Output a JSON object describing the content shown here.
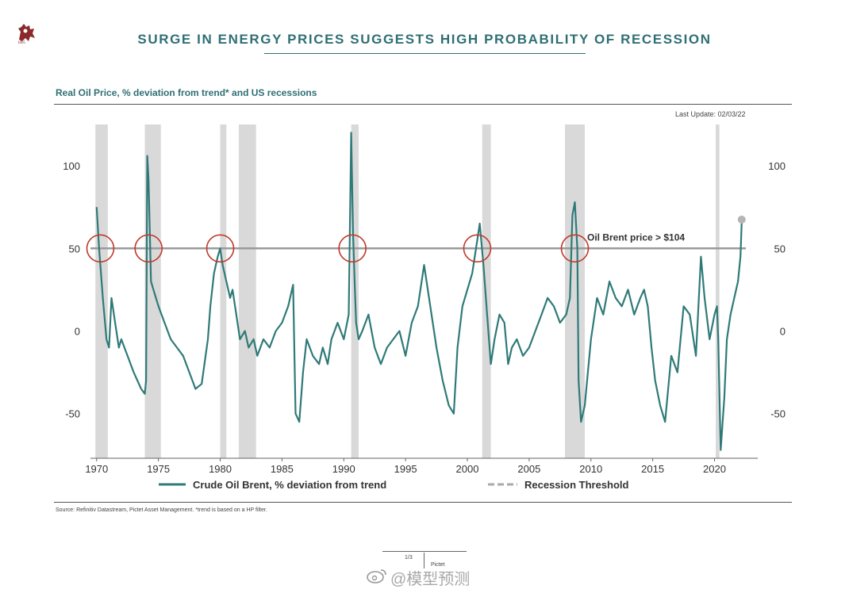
{
  "header": {
    "logo_year": "1805",
    "title": "SURGE IN ENERGY PRICES SUGGESTS HIGH PROBABILITY OF RECESSION"
  },
  "subtitle": "Real Oil Price, % deviation from trend* and US recessions",
  "last_update": "Last Update: 02/03/22",
  "source": "Source: Refinitiv Datastream, Pictet Asset Management. *trend is based on a HP filter.",
  "footer": {
    "page": "1/3",
    "brand": "Pictet"
  },
  "watermark": "@模型预测",
  "colors": {
    "series": "#2f7a78",
    "recession": "#d9d9d9",
    "threshold": "#9a9a9a",
    "circle": "#c0392b",
    "title": "#2f6f74"
  },
  "chart_data": {
    "type": "line",
    "xlim": [
      1969.5,
      2023.5
    ],
    "ylim": [
      -77,
      125
    ],
    "xticks": [
      "1970",
      "1975",
      "1980",
      "1985",
      "1990",
      "1995",
      "2000",
      "2005",
      "2010",
      "2015",
      "2020"
    ],
    "yticks_left": [
      "100",
      "50",
      "0",
      "-50"
    ],
    "yticks_right": [
      "100",
      "50",
      "0",
      "-50"
    ],
    "grid": false,
    "legend_position": "bottom",
    "recessions": [
      [
        1969.9,
        1970.9
      ],
      [
        1973.9,
        1975.2
      ],
      [
        1980.0,
        1980.5
      ],
      [
        1981.5,
        1982.9
      ],
      [
        1990.6,
        1991.2
      ],
      [
        2001.2,
        2001.9
      ],
      [
        2007.9,
        2009.5
      ],
      [
        2020.1,
        2020.4
      ]
    ],
    "threshold": {
      "value": 50,
      "label": "Oil Brent price > $104"
    },
    "circles_x": [
      1970.3,
      1974.2,
      1980.0,
      1990.7,
      2000.8,
      2008.7
    ],
    "latest_point": {
      "x": 2022.2,
      "y": 66
    },
    "series": [
      {
        "name": "Crude Oil Brent, % deviation from trend",
        "x": [
          1970.0,
          1970.2,
          1970.5,
          1970.8,
          1971.0,
          1971.2,
          1971.5,
          1971.8,
          1972.0,
          1972.5,
          1973.0,
          1973.3,
          1973.6,
          1973.9,
          1974.0,
          1974.1,
          1974.2,
          1974.4,
          1974.6,
          1975.0,
          1975.5,
          1976.0,
          1976.5,
          1977.0,
          1977.5,
          1978.0,
          1978.5,
          1979.0,
          1979.2,
          1979.5,
          1979.8,
          1980.0,
          1980.2,
          1980.5,
          1980.8,
          1981.0,
          1981.3,
          1981.6,
          1982.0,
          1982.3,
          1982.7,
          1983.0,
          1983.5,
          1984.0,
          1984.5,
          1985.0,
          1985.5,
          1985.9,
          1986.1,
          1986.4,
          1986.7,
          1987.0,
          1987.5,
          1988.0,
          1988.3,
          1988.7,
          1989.0,
          1989.5,
          1990.0,
          1990.4,
          1990.6,
          1990.75,
          1990.9,
          1991.0,
          1991.2,
          1991.5,
          1992.0,
          1992.5,
          1993.0,
          1993.5,
          1994.0,
          1994.5,
          1995.0,
          1995.5,
          1996.0,
          1996.5,
          1997.0,
          1997.5,
          1998.0,
          1998.5,
          1998.9,
          1999.2,
          1999.6,
          2000.0,
          2000.4,
          2000.8,
          2001.0,
          2001.3,
          2001.6,
          2001.9,
          2002.2,
          2002.6,
          2003.0,
          2003.3,
          2003.6,
          2004.0,
          2004.5,
          2005.0,
          2005.5,
          2006.0,
          2006.5,
          2007.0,
          2007.5,
          2008.0,
          2008.3,
          2008.5,
          2008.7,
          2008.9,
          2009.0,
          2009.2,
          2009.5,
          2010.0,
          2010.5,
          2011.0,
          2011.5,
          2012.0,
          2012.5,
          2013.0,
          2013.5,
          2014.0,
          2014.3,
          2014.6,
          2014.9,
          2015.2,
          2015.6,
          2016.0,
          2016.5,
          2017.0,
          2017.5,
          2018.0,
          2018.5,
          2018.9,
          2019.2,
          2019.6,
          2020.0,
          2020.2,
          2020.3,
          2020.5,
          2020.8,
          2021.0,
          2021.3,
          2021.6,
          2021.9,
          2022.1,
          2022.2
        ],
        "y": [
          75,
          50,
          20,
          -5,
          -10,
          20,
          5,
          -10,
          -5,
          -15,
          -25,
          -30,
          -35,
          -38,
          -30,
          106,
          92,
          30,
          25,
          15,
          5,
          -5,
          -10,
          -15,
          -25,
          -35,
          -32,
          -5,
          15,
          35,
          45,
          50,
          40,
          30,
          20,
          25,
          10,
          -5,
          0,
          -10,
          -5,
          -15,
          -5,
          -10,
          0,
          5,
          15,
          28,
          -50,
          -55,
          -25,
          -5,
          -15,
          -20,
          -10,
          -20,
          -5,
          5,
          -5,
          10,
          120,
          60,
          25,
          5,
          -5,
          0,
          10,
          -10,
          -20,
          -10,
          -5,
          0,
          -15,
          5,
          15,
          40,
          15,
          -10,
          -30,
          -45,
          -50,
          -10,
          15,
          25,
          35,
          55,
          65,
          40,
          10,
          -20,
          -5,
          10,
          5,
          -20,
          -10,
          -5,
          -15,
          -10,
          0,
          10,
          20,
          15,
          5,
          10,
          20,
          70,
          78,
          50,
          -30,
          -55,
          -45,
          -5,
          20,
          10,
          30,
          20,
          15,
          25,
          10,
          20,
          25,
          15,
          -10,
          -30,
          -45,
          -55,
          -15,
          -25,
          15,
          10,
          -15,
          45,
          20,
          -5,
          10,
          15,
          -5,
          -72,
          -40,
          -5,
          10,
          20,
          30,
          45,
          66
        ]
      }
    ]
  }
}
